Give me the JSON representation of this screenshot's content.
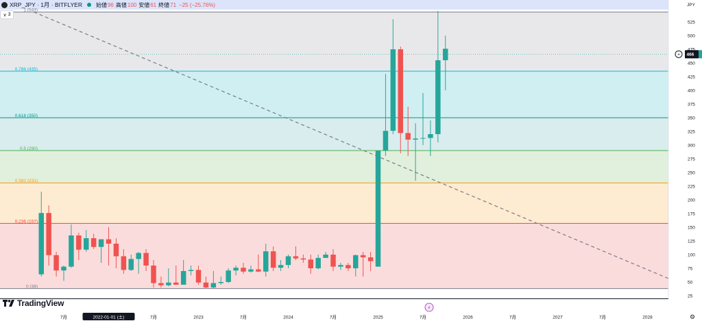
{
  "header": {
    "symbol": "XRP_JPY · 1月 · BITFLYER",
    "open_label": "始値",
    "open_value": "96",
    "high_label": "高値",
    "high_value": "100",
    "low_label": "安値",
    "low_value": "61",
    "close_label": "終値",
    "close_value": "71",
    "change": "−25 (−25.76%)",
    "collapse_count": "3"
  },
  "colors": {
    "up": "#26a69a",
    "down": "#ef5350",
    "fib_1": "#787b86",
    "fib_786": "#00bcd4",
    "fib_618": "#009688",
    "fib_5": "#4caf50",
    "fib_382": "#ff9800",
    "fib_236": "#f44336",
    "fib_0": "#787b86"
  },
  "logo_text": "TradingView",
  "current_price_label": "466",
  "currency": "JPY",
  "chart_data": {
    "type": "candlestick",
    "ylim": [
      20,
      565
    ],
    "y_ticks": [
      25,
      50,
      75,
      100,
      125,
      150,
      175,
      200,
      225,
      250,
      275,
      300,
      325,
      350,
      375,
      400,
      425,
      450,
      475,
      500,
      525
    ],
    "y_unit": "JPY",
    "x_start": "2021-07",
    "x_end": "2028-07",
    "x_ticks": [
      {
        "date": "2021-07",
        "label": "7月"
      },
      {
        "date": "2022-01",
        "label": "2022-01-01 (土)",
        "highlight": true
      },
      {
        "date": "2022-07",
        "label": "7月"
      },
      {
        "date": "2023-01",
        "label": "2023"
      },
      {
        "date": "2023-07",
        "label": "7月"
      },
      {
        "date": "2024-01",
        "label": "2024"
      },
      {
        "date": "2024-07",
        "label": "7月"
      },
      {
        "date": "2025-01",
        "label": "2025"
      },
      {
        "date": "2025-07",
        "label": "7月"
      },
      {
        "date": "2026-01",
        "label": "2026"
      },
      {
        "date": "2026-07",
        "label": "7月"
      },
      {
        "date": "2027-01",
        "label": "2027"
      },
      {
        "date": "2027-07",
        "label": "7月"
      },
      {
        "date": "2028-01",
        "label": "2028"
      }
    ],
    "fib_levels": [
      {
        "label": "1 (543)",
        "price": 543,
        "key": "fib_1"
      },
      {
        "label": "0.786 (435)",
        "price": 435,
        "key": "fib_786"
      },
      {
        "label": "0.618 (350)",
        "price": 350,
        "key": "fib_618"
      },
      {
        "label": "0.5 (290)",
        "price": 290,
        "key": "fib_5"
      },
      {
        "label": "0.382 (231)",
        "price": 231,
        "key": "fib_382"
      },
      {
        "label": "0.236 (157)",
        "price": 157,
        "key": "fib_236"
      },
      {
        "label": "0 (38)",
        "price": 38,
        "key": "fib_0"
      }
    ],
    "trendline": {
      "from": {
        "date": "2021-03",
        "price": 543
      },
      "to": {
        "date": "2028-07",
        "price": 38
      }
    },
    "current_price": 466,
    "candles": [
      {
        "date": "2021-04",
        "o": 64,
        "h": 215,
        "l": 60,
        "c": 176
      },
      {
        "date": "2021-05",
        "o": 176,
        "h": 190,
        "l": 80,
        "c": 99
      },
      {
        "date": "2021-06",
        "o": 99,
        "h": 105,
        "l": 60,
        "c": 71
      },
      {
        "date": "2021-07",
        "o": 71,
        "h": 80,
        "l": 52,
        "c": 78
      },
      {
        "date": "2021-08",
        "o": 78,
        "h": 155,
        "l": 76,
        "c": 135
      },
      {
        "date": "2021-09",
        "o": 135,
        "h": 140,
        "l": 90,
        "c": 109
      },
      {
        "date": "2021-10",
        "o": 109,
        "h": 145,
        "l": 105,
        "c": 130
      },
      {
        "date": "2021-11",
        "o": 130,
        "h": 138,
        "l": 110,
        "c": 114
      },
      {
        "date": "2021-12",
        "o": 114,
        "h": 128,
        "l": 85,
        "c": 128
      },
      {
        "date": "2022-01",
        "o": 128,
        "h": 150,
        "l": 80,
        "c": 120
      },
      {
        "date": "2022-02",
        "o": 120,
        "h": 130,
        "l": 75,
        "c": 97
      },
      {
        "date": "2022-03",
        "o": 97,
        "h": 110,
        "l": 65,
        "c": 72
      },
      {
        "date": "2022-04",
        "o": 72,
        "h": 100,
        "l": 70,
        "c": 92
      },
      {
        "date": "2022-05",
        "o": 92,
        "h": 105,
        "l": 65,
        "c": 103
      },
      {
        "date": "2022-06",
        "o": 103,
        "h": 110,
        "l": 70,
        "c": 80
      },
      {
        "date": "2022-07",
        "o": 80,
        "h": 90,
        "l": 40,
        "c": 48
      },
      {
        "date": "2022-08",
        "o": 48,
        "h": 60,
        "l": 40,
        "c": 44
      },
      {
        "date": "2022-09",
        "o": 44,
        "h": 75,
        "l": 42,
        "c": 49
      },
      {
        "date": "2022-10",
        "o": 49,
        "h": 80,
        "l": 45,
        "c": 45
      },
      {
        "date": "2022-11",
        "o": 45,
        "h": 90,
        "l": 45,
        "c": 70
      },
      {
        "date": "2022-12",
        "o": 70,
        "h": 80,
        "l": 62,
        "c": 72
      },
      {
        "date": "2023-01",
        "o": 72,
        "h": 80,
        "l": 45,
        "c": 49
      },
      {
        "date": "2023-02",
        "o": 49,
        "h": 60,
        "l": 38,
        "c": 40
      },
      {
        "date": "2023-03",
        "o": 40,
        "h": 70,
        "l": 38,
        "c": 48
      },
      {
        "date": "2023-04",
        "o": 48,
        "h": 60,
        "l": 45,
        "c": 50
      },
      {
        "date": "2023-05",
        "o": 50,
        "h": 75,
        "l": 48,
        "c": 71
      },
      {
        "date": "2023-06",
        "o": 71,
        "h": 80,
        "l": 62,
        "c": 76
      },
      {
        "date": "2023-07",
        "o": 76,
        "h": 85,
        "l": 65,
        "c": 69
      },
      {
        "date": "2023-08",
        "o": 69,
        "h": 80,
        "l": 67,
        "c": 73
      },
      {
        "date": "2023-09",
        "o": 73,
        "h": 100,
        "l": 68,
        "c": 69
      },
      {
        "date": "2023-10",
        "o": 69,
        "h": 120,
        "l": 60,
        "c": 106
      },
      {
        "date": "2023-11",
        "o": 106,
        "h": 115,
        "l": 70,
        "c": 76
      },
      {
        "date": "2023-12",
        "o": 76,
        "h": 90,
        "l": 70,
        "c": 81
      },
      {
        "date": "2024-01",
        "o": 81,
        "h": 100,
        "l": 75,
        "c": 97
      },
      {
        "date": "2024-02",
        "o": 97,
        "h": 115,
        "l": 90,
        "c": 93
      },
      {
        "date": "2024-03",
        "o": 93,
        "h": 100,
        "l": 85,
        "c": 91
      },
      {
        "date": "2024-04",
        "o": 91,
        "h": 100,
        "l": 65,
        "c": 75
      },
      {
        "date": "2024-05",
        "o": 75,
        "h": 100,
        "l": 73,
        "c": 94
      },
      {
        "date": "2024-06",
        "o": 94,
        "h": 105,
        "l": 95,
        "c": 100
      },
      {
        "date": "2024-07",
        "o": 100,
        "h": 110,
        "l": 70,
        "c": 78
      },
      {
        "date": "2024-08",
        "o": 78,
        "h": 85,
        "l": 72,
        "c": 81
      },
      {
        "date": "2024-09",
        "o": 81,
        "h": 85,
        "l": 70,
        "c": 75
      },
      {
        "date": "2024-10",
        "o": 75,
        "h": 100,
        "l": 60,
        "c": 99
      },
      {
        "date": "2024-11",
        "o": 99,
        "h": 105,
        "l": 60,
        "c": 95
      },
      {
        "date": "2024-12",
        "o": 95,
        "h": 105,
        "l": 70,
        "c": 88
      },
      {
        "date": "2025-01",
        "o": 78,
        "h": 290,
        "l": 78,
        "c": 290
      },
      {
        "date": "2025-02",
        "o": 290,
        "h": 430,
        "l": 280,
        "c": 326
      },
      {
        "date": "2025-03",
        "o": 326,
        "h": 530,
        "l": 320,
        "c": 475
      },
      {
        "date": "2025-04",
        "o": 475,
        "h": 480,
        "l": 285,
        "c": 322
      },
      {
        "date": "2025-05",
        "o": 322,
        "h": 370,
        "l": 280,
        "c": 310
      },
      {
        "date": "2025-06",
        "o": 310,
        "h": 340,
        "l": 235,
        "c": 312
      },
      {
        "date": "2025-07",
        "o": 312,
        "h": 395,
        "l": 300,
        "c": 313
      },
      {
        "date": "2025-08",
        "o": 313,
        "h": 345,
        "l": 280,
        "c": 320
      },
      {
        "date": "2025-09",
        "o": 320,
        "h": 545,
        "l": 305,
        "c": 455
      },
      {
        "date": "2025-10",
        "o": 455,
        "h": 500,
        "l": 400,
        "c": 476
      }
    ]
  }
}
